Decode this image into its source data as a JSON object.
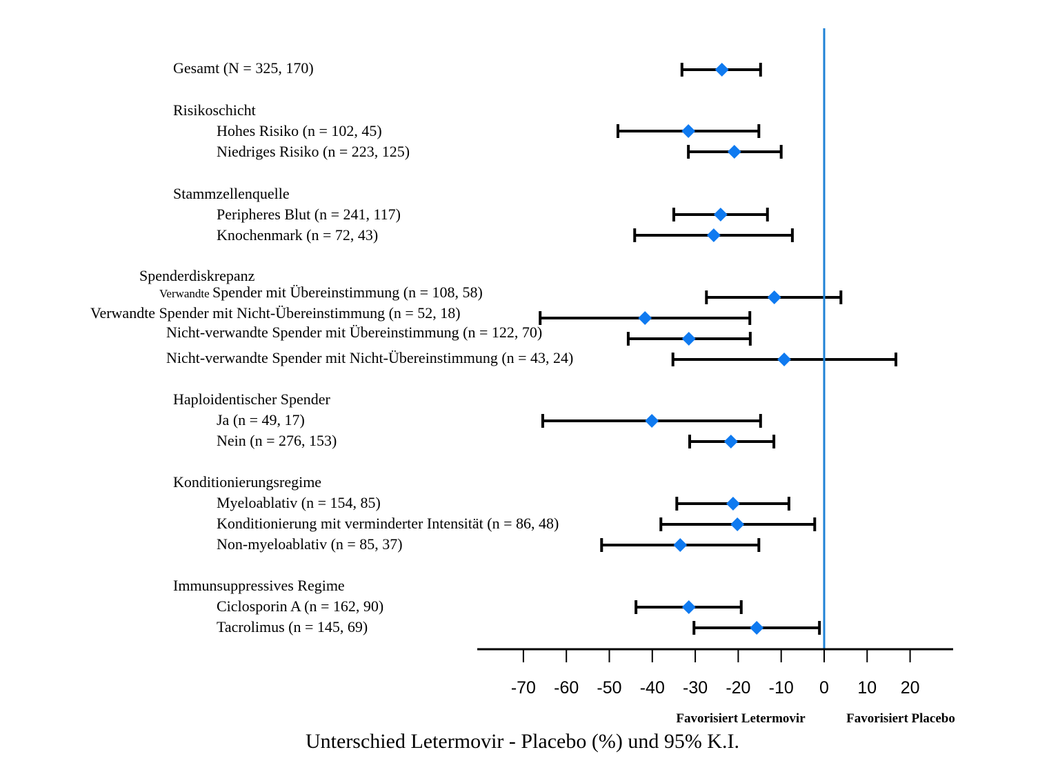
{
  "chart_data": {
    "type": "forest",
    "title": "",
    "xlabel": "Unterschied Letermovir - Placebo (%) und 95% K.I.",
    "xlim": [
      -80,
      30
    ],
    "xticks": [
      -70,
      -60,
      -50,
      -40,
      -30,
      -20,
      -10,
      0,
      10,
      20
    ],
    "reference_line": 0,
    "reference_color": "#1f82d6",
    "marker_color": "#0f7af0",
    "favor_left": "Favorisiert Letermovir",
    "favor_right": "Favorisiert Placebo",
    "rows": [
      {
        "label": "Gesamt (N = 325, 170)",
        "kind": "item",
        "indent": 0,
        "estimate": -23.8,
        "lo": -33.1,
        "hi": -14.8
      },
      {
        "label": "Risikoschicht",
        "kind": "header",
        "indent": 0
      },
      {
        "label": "Hohes Risiko (n = 102, 45)",
        "kind": "item",
        "indent": 1,
        "estimate": -31.6,
        "lo": -48.0,
        "hi": -15.2
      },
      {
        "label": "Niedriges Risiko (n = 223, 125)",
        "kind": "item",
        "indent": 1,
        "estimate": -20.9,
        "lo": -31.6,
        "hi": -10.0
      },
      {
        "label": "Stammzellenquelle",
        "kind": "header",
        "indent": 0
      },
      {
        "label": "Peripheres Blut (n = 241, 117)",
        "kind": "item",
        "indent": 1,
        "estimate": -24.1,
        "lo": -35.0,
        "hi": -13.2
      },
      {
        "label": "Knochenmark (n = 72, 43)",
        "kind": "item",
        "indent": 1,
        "estimate": -25.7,
        "lo": -44.1,
        "hi": -7.4
      },
      {
        "label": "Spenderdiskrepanz",
        "kind": "header",
        "indent": 0
      },
      {
        "label_small": "Verwandte",
        "label": "Spender mit Übereinstimmung (n = 108, 58)",
        "kind": "item",
        "indent": 1,
        "estimate": -11.6,
        "lo": -27.4,
        "hi": 3.9
      },
      {
        "label": "Verwandte Spender mit Nicht-Übereinstimmung (n = 52, 18)",
        "kind": "item",
        "indent": 1,
        "estimate": -41.7,
        "lo": -66.1,
        "hi": -17.3
      },
      {
        "label": "Nicht-verwandte Spender mit Übereinstimmung (n = 122, 70)",
        "kind": "item",
        "indent": 1,
        "estimate": -31.5,
        "lo": -45.6,
        "hi": -17.2
      },
      {
        "label": "Nicht-verwandte Spender mit Nicht-Übereinstimmung (n = 43, 24)",
        "kind": "item",
        "indent": 1,
        "estimate": -9.3,
        "lo": -35.2,
        "hi": 16.7
      },
      {
        "label": "Haploidentischer Spender",
        "kind": "header",
        "indent": 0
      },
      {
        "label": "Ja (n = 49, 17)",
        "kind": "item",
        "indent": 1,
        "estimate": -40.1,
        "lo": -65.5,
        "hi": -14.8
      },
      {
        "label": "Nein (n = 276, 153)",
        "kind": "item",
        "indent": 1,
        "estimate": -21.7,
        "lo": -31.3,
        "hi": -11.7
      },
      {
        "label": "Konditionierungsregime",
        "kind": "header",
        "indent": 0
      },
      {
        "label": "Myeloablativ (n = 154, 85)",
        "kind": "item",
        "indent": 1,
        "estimate": -21.2,
        "lo": -34.3,
        "hi": -8.2
      },
      {
        "label": "Konditionierung mit verminderter Intensität (n = 86, 48)",
        "kind": "item",
        "indent": 1,
        "estimate": -20.2,
        "lo": -38.0,
        "hi": -2.2
      },
      {
        "label": "Non-myeloablativ (n = 85, 37)",
        "kind": "item",
        "indent": 1,
        "estimate": -33.5,
        "lo": -51.8,
        "hi": -15.2
      },
      {
        "label": "Immunsuppressives Regime",
        "kind": "header",
        "indent": 0
      },
      {
        "label": "Ciclosporin A (n = 162, 90)",
        "kind": "item",
        "indent": 1,
        "estimate": -31.5,
        "lo": -43.8,
        "hi": -19.3
      },
      {
        "label": "Tacrolimus (n = 145, 69)",
        "kind": "item",
        "indent": 1,
        "estimate": -15.7,
        "lo": -30.3,
        "hi": -1.1
      }
    ]
  }
}
